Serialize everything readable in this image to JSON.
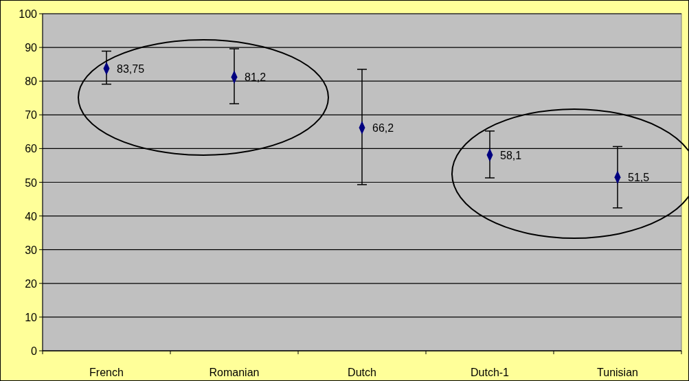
{
  "chart_data": {
    "type": "scatter",
    "categories": [
      "French",
      "Romanian",
      "Dutch",
      "Dutch-1",
      "Tunisian"
    ],
    "values": [
      83.75,
      81.2,
      66.2,
      58.1,
      51.5
    ],
    "errors": [
      [
        79.1,
        88.9
      ],
      [
        73.3,
        89.6
      ],
      [
        49.3,
        83.5
      ],
      [
        51.3,
        65.2
      ],
      [
        42.4,
        60.6
      ]
    ],
    "value_labels": [
      "83,75",
      "81,2",
      "66,2",
      "58,1",
      "51,5"
    ],
    "color": "#000080",
    "marker": "diamond",
    "ylim": [
      0,
      100
    ],
    "yticks": [
      0,
      10,
      20,
      30,
      40,
      50,
      60,
      70,
      80,
      90,
      100
    ],
    "grid": "y"
  }
}
